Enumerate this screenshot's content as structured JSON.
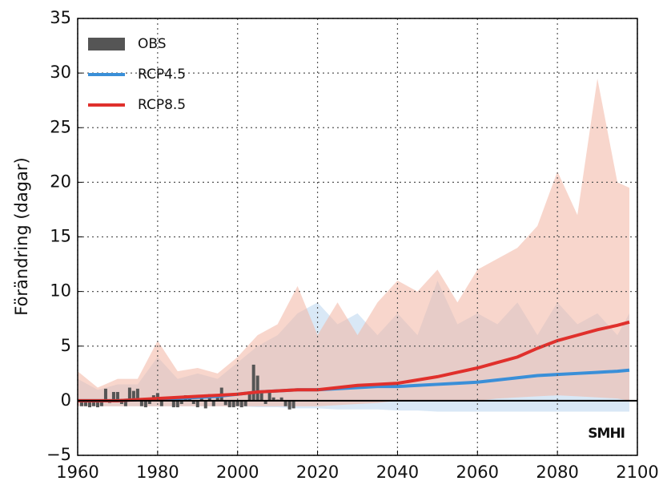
{
  "chart_data": {
    "type": "line",
    "y_label": "Förändring (dagar)",
    "logo_text": "SMHI",
    "xlim": [
      1960,
      2100
    ],
    "xticks": [
      1960,
      1980,
      2000,
      2020,
      2040,
      2060,
      2080,
      2100
    ],
    "ylim": [
      -5,
      35
    ],
    "yticks": [
      {
        "value": -5,
        "label": "−5"
      },
      0,
      5,
      10,
      15,
      20,
      25,
      30,
      35
    ],
    "grid": true,
    "legend": "upper left",
    "series": [
      {
        "name": "OBS",
        "type": "bar",
        "color": "#555555",
        "x": [
          1961,
          1962,
          1963,
          1964,
          1965,
          1966,
          1967,
          1968,
          1969,
          1970,
          1971,
          1972,
          1973,
          1974,
          1975,
          1976,
          1977,
          1978,
          1979,
          1980,
          1981,
          1982,
          1983,
          1984,
          1985,
          1986,
          1987,
          1988,
          1989,
          1990,
          1991,
          1992,
          1993,
          1994,
          1995,
          1996,
          1997,
          1998,
          1999,
          2000,
          2001,
          2002,
          2003,
          2004,
          2005,
          2006,
          2007,
          2008,
          2009,
          2010,
          2011,
          2012,
          2013,
          2014
        ],
        "values": [
          -0.5,
          -0.5,
          -0.6,
          -0.5,
          -0.6,
          -0.5,
          1.1,
          -0.2,
          0.8,
          0.8,
          -0.3,
          -0.5,
          1.2,
          0.9,
          1.1,
          -0.5,
          -0.6,
          -0.3,
          0.5,
          0.7,
          -0.5,
          0.3,
          0.1,
          -0.6,
          -0.6,
          -0.3,
          0.5,
          0.3,
          -0.3,
          -0.6,
          0.4,
          -0.7,
          0.6,
          -0.5,
          0.3,
          1.2,
          -0.4,
          -0.6,
          -0.6,
          -0.5,
          -0.6,
          -0.5,
          0.6,
          3.3,
          2.3,
          0.8,
          -0.3,
          0.8,
          0.3,
          0.1,
          0.3,
          -0.5,
          -0.8,
          -0.7
        ]
      },
      {
        "name": "RCP4.5",
        "type": "line",
        "color": "#3a8fd8",
        "band_color": "#b9d5ef",
        "x": [
          1960,
          1965,
          1970,
          1975,
          1980,
          1985,
          1990,
          1995,
          2000,
          2005,
          2010,
          2015,
          2020,
          2025,
          2030,
          2035,
          2040,
          2045,
          2050,
          2055,
          2060,
          2065,
          2070,
          2075,
          2080,
          2085,
          2090,
          2095,
          2098
        ],
        "values": [
          0,
          0,
          0,
          0.1,
          0.1,
          0.2,
          0.3,
          0.4,
          0.6,
          0.8,
          0.9,
          1.0,
          1.0,
          1.1,
          1.2,
          1.3,
          1.3,
          1.4,
          1.5,
          1.6,
          1.7,
          1.9,
          2.1,
          2.3,
          2.4,
          2.5,
          2.6,
          2.7,
          2.8
        ],
        "band_upper": [
          2,
          1,
          1.5,
          1.5,
          4,
          2,
          2.5,
          2,
          3.5,
          5,
          6,
          8,
          9,
          7,
          8,
          6,
          8,
          6,
          11,
          7,
          8,
          7,
          9,
          6,
          9,
          7,
          8,
          6,
          8
        ],
        "band_lower": [
          -0.5,
          -0.5,
          -0.5,
          -0.5,
          -0.5,
          -0.5,
          -0.5,
          -0.5,
          -0.5,
          -0.6,
          -0.6,
          -0.7,
          -0.7,
          -0.8,
          -0.8,
          -0.8,
          -0.9,
          -0.9,
          -1,
          -1,
          -1,
          -1,
          -1,
          -1,
          -1,
          -1,
          -1,
          -1,
          -1
        ]
      },
      {
        "name": "RCP8.5",
        "type": "line",
        "color": "#e0302c",
        "band_color": "#f2b4a3",
        "x": [
          1960,
          1965,
          1970,
          1975,
          1980,
          1985,
          1990,
          1995,
          2000,
          2005,
          2010,
          2015,
          2020,
          2025,
          2030,
          2035,
          2040,
          2045,
          2050,
          2055,
          2060,
          2065,
          2070,
          2075,
          2080,
          2085,
          2090,
          2095,
          2098
        ],
        "values": [
          0,
          0,
          0,
          0.1,
          0.2,
          0.3,
          0.4,
          0.5,
          0.6,
          0.8,
          0.9,
          1.0,
          1.0,
          1.2,
          1.4,
          1.5,
          1.6,
          1.9,
          2.2,
          2.6,
          3.0,
          3.5,
          4.0,
          4.8,
          5.5,
          6.0,
          6.5,
          6.9,
          7.2
        ],
        "band_upper": [
          2.7,
          1.2,
          2,
          2,
          5.5,
          2.7,
          3,
          2.5,
          4,
          6,
          7,
          10.5,
          6,
          9,
          6,
          9,
          11,
          10,
          12,
          9,
          12,
          13,
          14,
          16,
          21,
          17,
          29.5,
          20,
          19.5
        ],
        "band_lower": [
          -0.5,
          -0.5,
          -0.5,
          -0.5,
          -0.5,
          -0.5,
          -0.5,
          -0.5,
          -0.5,
          -0.5,
          -0.5,
          -0.5,
          -0.5,
          -0.4,
          -0.3,
          -0.2,
          0,
          0,
          0,
          0,
          0,
          0.2,
          0.3,
          0.4,
          0.5,
          0.4,
          0.3,
          0.2,
          0
        ]
      }
    ]
  }
}
